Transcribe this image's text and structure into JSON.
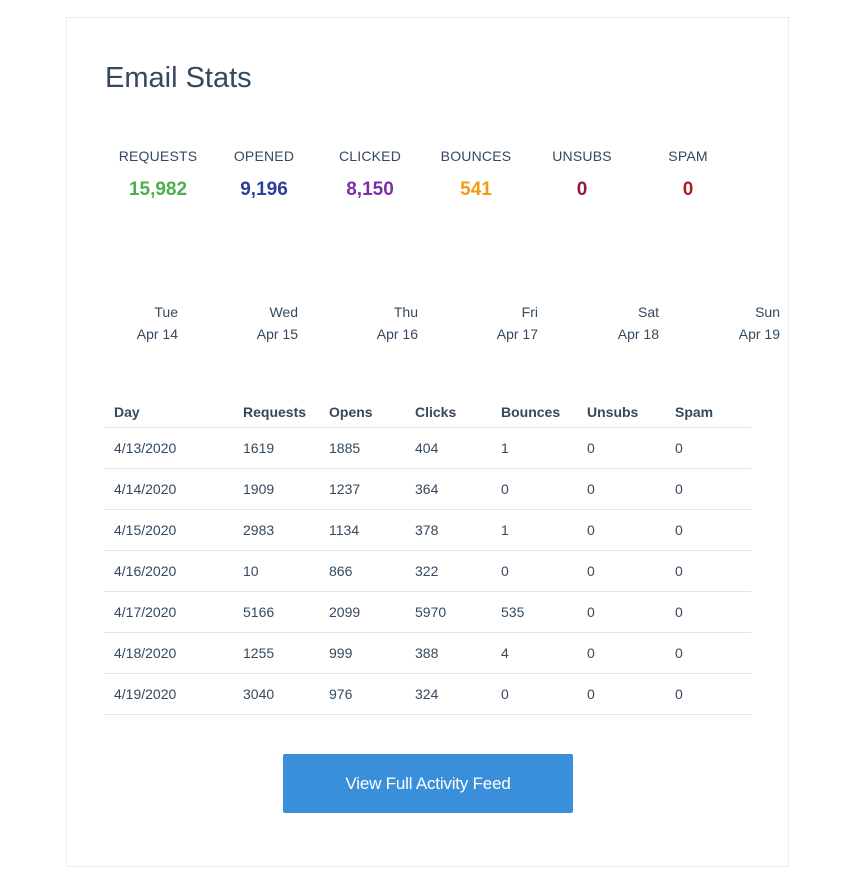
{
  "title": "Email Stats",
  "summary": [
    {
      "label": "REQUESTS",
      "value": "15,982",
      "color": "#4cae4c"
    },
    {
      "label": "OPENED",
      "value": "9,196",
      "color": "#2e3e9b"
    },
    {
      "label": "CLICKED",
      "value": "8,150",
      "color": "#7b2fa8"
    },
    {
      "label": "BOUNCES",
      "value": "541",
      "color": "#f39c12"
    },
    {
      "label": "UNSUBS",
      "value": "0",
      "color": "#8b1a4a"
    },
    {
      "label": "SPAM",
      "value": "0",
      "color": "#b02020"
    }
  ],
  "days": [
    {
      "weekday": "Tue",
      "date": "Apr 14"
    },
    {
      "weekday": "Wed",
      "date": "Apr 15"
    },
    {
      "weekday": "Thu",
      "date": "Apr 16"
    },
    {
      "weekday": "Fri",
      "date": "Apr 17"
    },
    {
      "weekday": "Sat",
      "date": "Apr 18"
    },
    {
      "weekday": "Sun",
      "date": "Apr 19"
    }
  ],
  "table": {
    "headers": [
      "Day",
      "Requests",
      "Opens",
      "Clicks",
      "Bounces",
      "Unsubs",
      "Spam"
    ],
    "rows": [
      [
        "4/13/2020",
        "1619",
        "1885",
        "404",
        "1",
        "0",
        "0"
      ],
      [
        "4/14/2020",
        "1909",
        "1237",
        "364",
        "0",
        "0",
        "0"
      ],
      [
        "4/15/2020",
        "2983",
        "1134",
        "378",
        "1",
        "0",
        "0"
      ],
      [
        "4/16/2020",
        "10",
        "866",
        "322",
        "0",
        "0",
        "0"
      ],
      [
        "4/17/2020",
        "5166",
        "2099",
        "5970",
        "535",
        "0",
        "0"
      ],
      [
        "4/18/2020",
        "1255",
        "999",
        "388",
        "4",
        "0",
        "0"
      ],
      [
        "4/19/2020",
        "3040",
        "976",
        "324",
        "0",
        "0",
        "0"
      ]
    ]
  },
  "button": {
    "label": "View Full Activity Feed"
  }
}
